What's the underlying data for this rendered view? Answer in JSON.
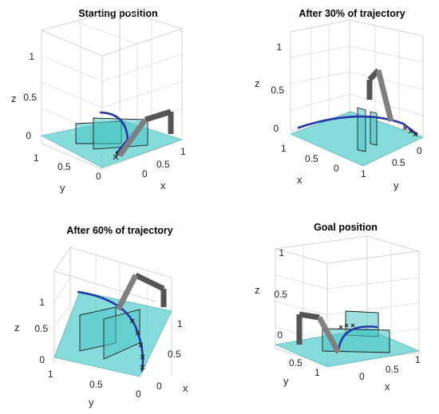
{
  "chart_data": [
    {
      "type": "3d-line",
      "title": "Starting position",
      "xlabel": "x",
      "ylabel": "y",
      "zlabel": "z",
      "x_ticks": [
        "0",
        "0.5",
        "1"
      ],
      "y_ticks": [
        "0",
        "0.5",
        "1"
      ],
      "z_ticks": [
        "0",
        "0.5",
        "1"
      ],
      "xlim": [
        0,
        1
      ],
      "ylim": [
        0,
        1
      ],
      "zlim": [
        -0.1,
        1
      ],
      "grid": true,
      "link_colors": [
        "#555555",
        "#7f7f7f"
      ],
      "floor_color": "#5ecfcf",
      "trajectory_color": "#2536a8"
    },
    {
      "type": "3d-line",
      "title": "After 30% of trajectory",
      "xlabel": "x",
      "ylabel": "y",
      "zlabel": "z",
      "x_ticks": [
        "0",
        "0.5",
        "1"
      ],
      "y_ticks": [
        "0",
        "0.5",
        "1"
      ],
      "z_ticks": [
        "0",
        "0.5",
        "1"
      ],
      "xlim": [
        0,
        1
      ],
      "ylim": [
        0,
        1
      ],
      "zlim": [
        -0.1,
        1
      ],
      "grid": true,
      "link_colors": [
        "#555555",
        "#7f7f7f"
      ],
      "floor_color": "#5ecfcf",
      "trajectory_color": "#2536a8"
    },
    {
      "type": "3d-line",
      "title": "After 60% of trajectory",
      "xlabel": "x",
      "ylabel": "y",
      "zlabel": "z",
      "x_ticks": [
        "0",
        "0.5",
        "1"
      ],
      "y_ticks": [
        "0",
        "0.5",
        "1"
      ],
      "z_ticks": [
        "0",
        "0.5",
        "1"
      ],
      "xlim": [
        0,
        1
      ],
      "ylim": [
        0,
        1
      ],
      "zlim": [
        -0.1,
        1
      ],
      "grid": true,
      "link_colors": [
        "#555555",
        "#7f7f7f"
      ],
      "floor_color": "#5ecfcf",
      "trajectory_color": "#2536a8"
    },
    {
      "type": "3d-line",
      "title": "Goal position",
      "xlabel": "x",
      "ylabel": "y",
      "zlabel": "z",
      "x_ticks": [
        "0",
        "0.5",
        "1"
      ],
      "y_ticks": [
        "0",
        "0.5",
        "1"
      ],
      "z_ticks": [
        "0",
        "0.5",
        "1"
      ],
      "xlim": [
        0,
        1
      ],
      "ylim": [
        0,
        1
      ],
      "zlim": [
        -0.1,
        1
      ],
      "grid": true,
      "link_colors": [
        "#555555",
        "#7f7f7f"
      ],
      "floor_color": "#5ecfcf",
      "trajectory_color": "#2536a8"
    }
  ]
}
